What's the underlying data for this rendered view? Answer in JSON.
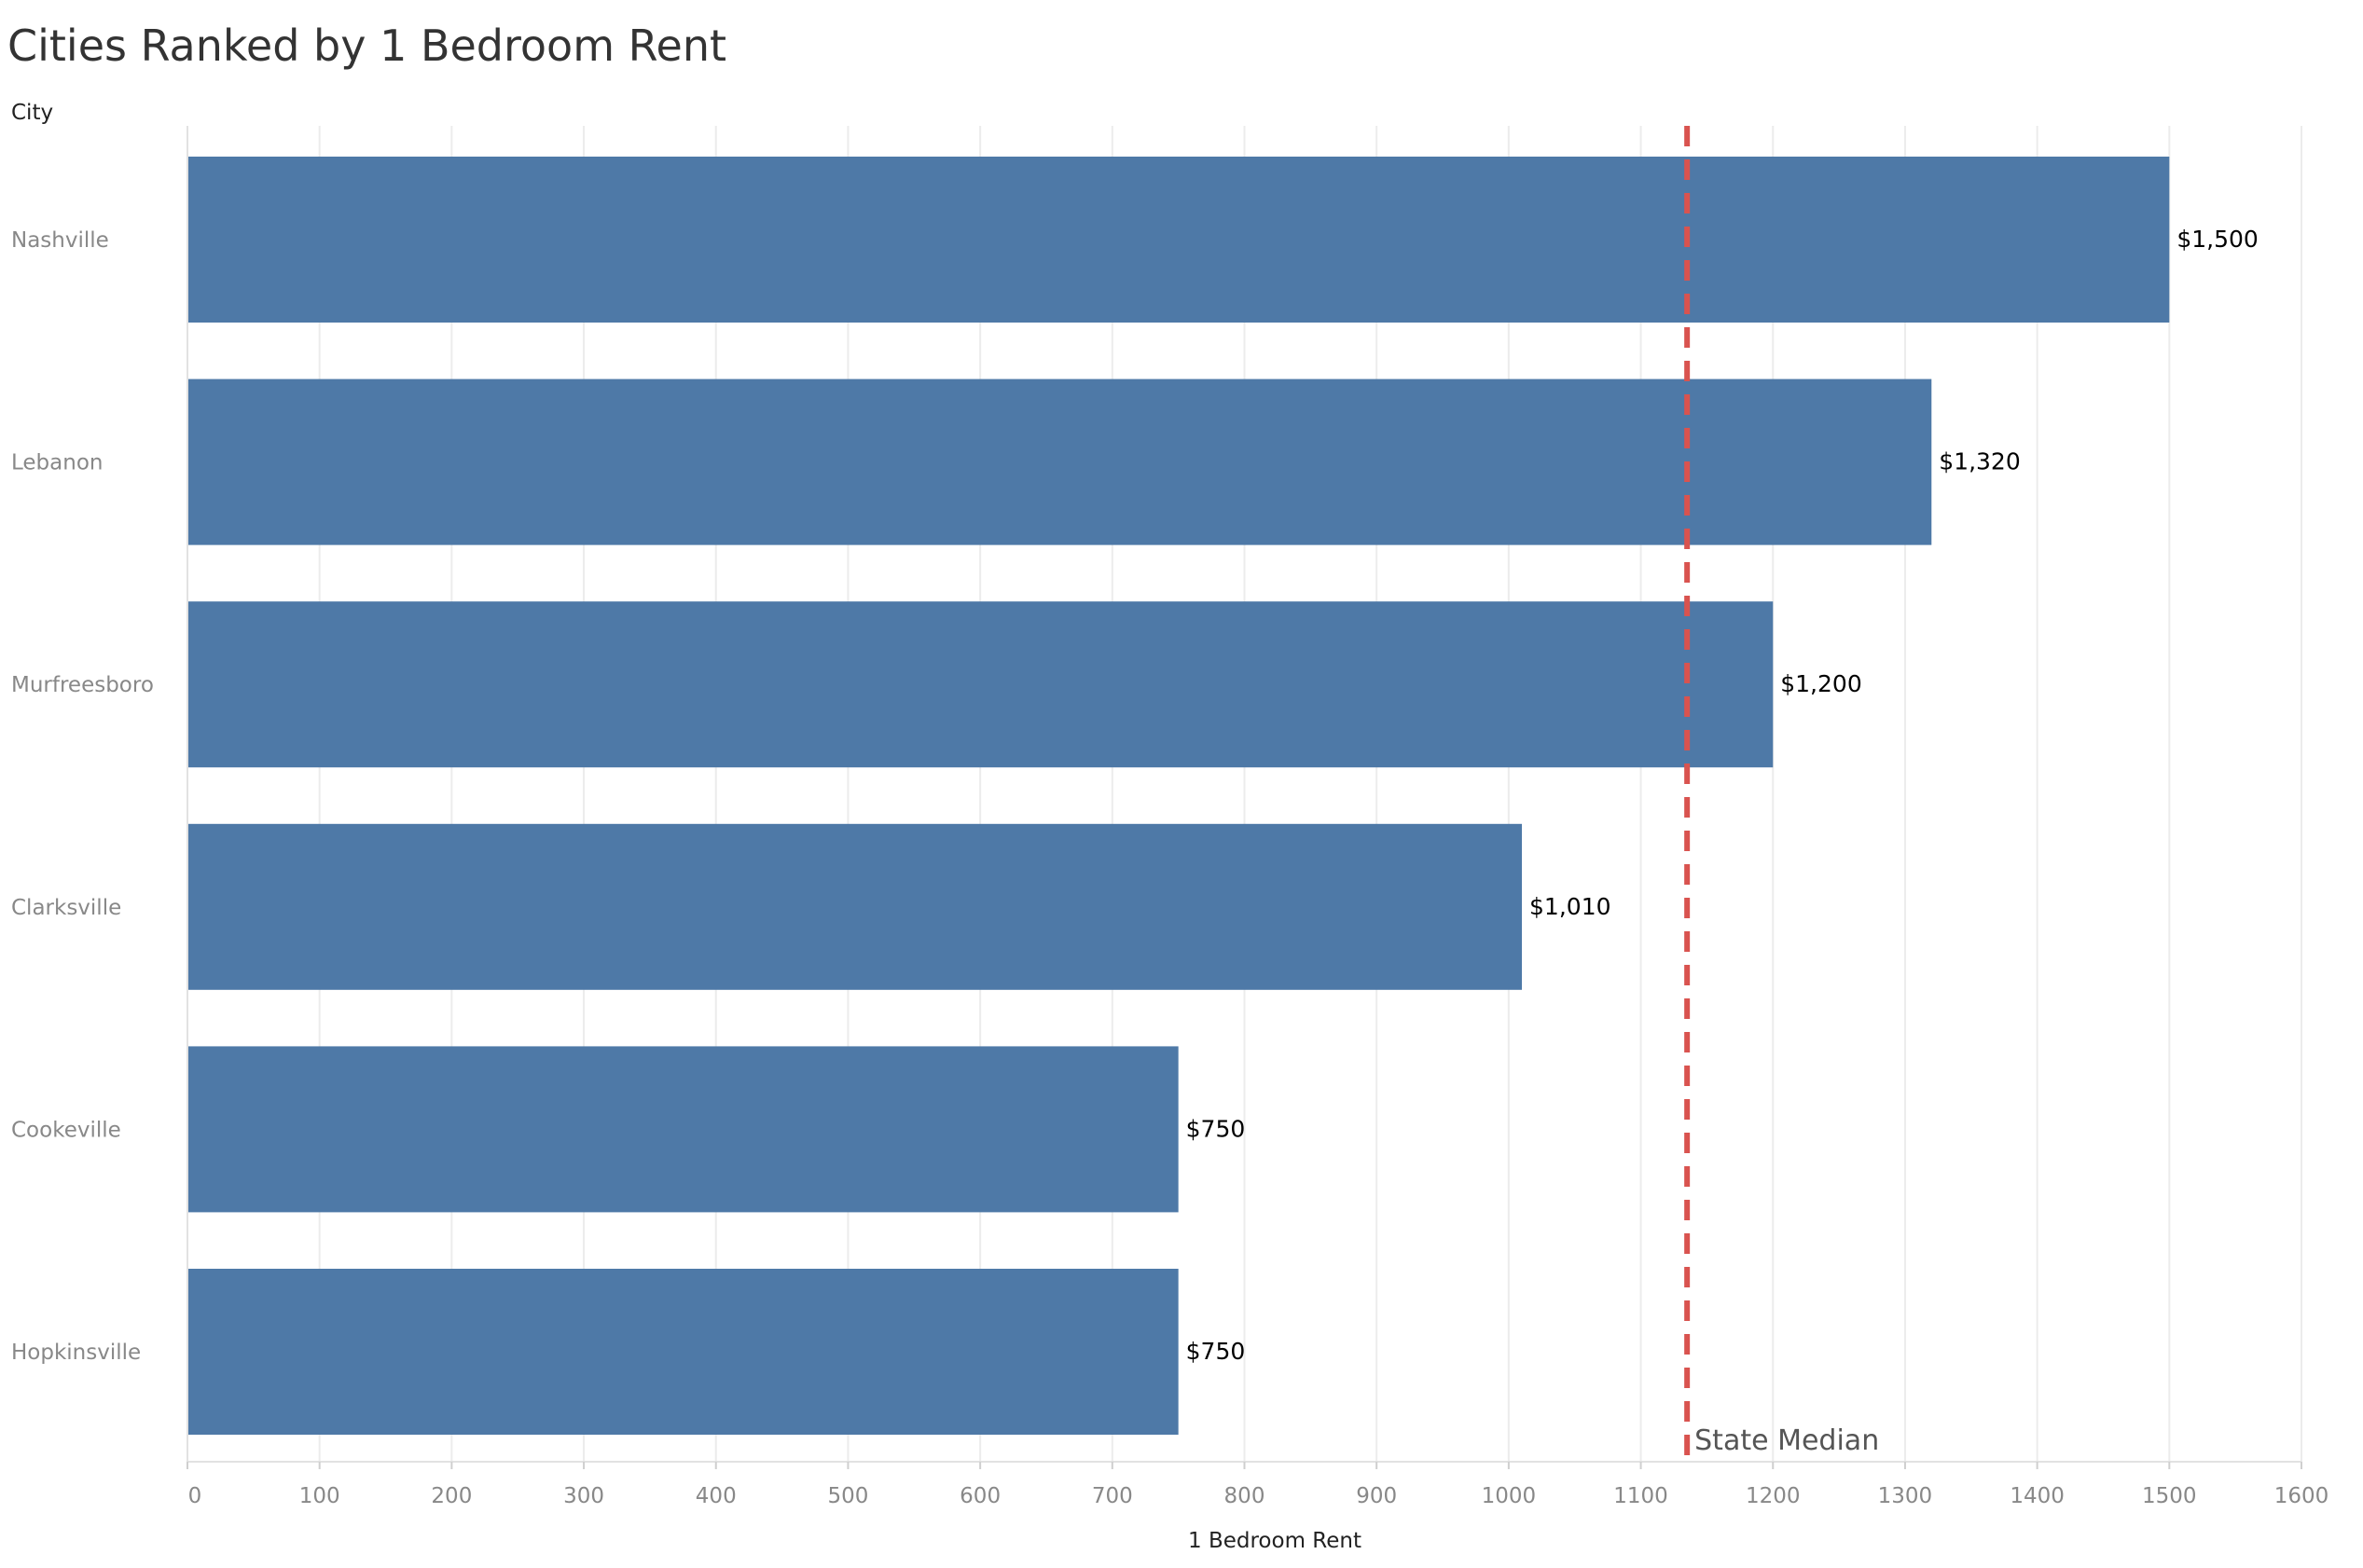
{
  "chart_data": {
    "type": "bar",
    "orientation": "horizontal",
    "title": "Cities Ranked by 1 Bedroom Rent",
    "ylabel": "City",
    "xlabel": "1 Bedroom Rent",
    "categories": [
      "Nashville",
      "Lebanon",
      "Murfreesboro",
      "Clarksville",
      "Cookeville",
      "Hopkinsville"
    ],
    "values": [
      1500,
      1320,
      1200,
      1010,
      750,
      750
    ],
    "data_labels": [
      "$1,500",
      "$1,320",
      "$1,200",
      "$1,010",
      "$750",
      "$750"
    ],
    "xlim": [
      0,
      1600
    ],
    "xticks": [
      0,
      100,
      200,
      300,
      400,
      500,
      600,
      700,
      800,
      900,
      1000,
      1100,
      1200,
      1300,
      1400,
      1500,
      1600
    ],
    "grid": true,
    "reference_line": {
      "label": "State Median",
      "value": 1135,
      "style": "dashed",
      "color": "#d9534f"
    },
    "colors": {
      "bar": "#4e79a7",
      "title": "#333333",
      "axis_text": "#888888",
      "label_text": "#000000",
      "grid": "#ececec"
    }
  }
}
